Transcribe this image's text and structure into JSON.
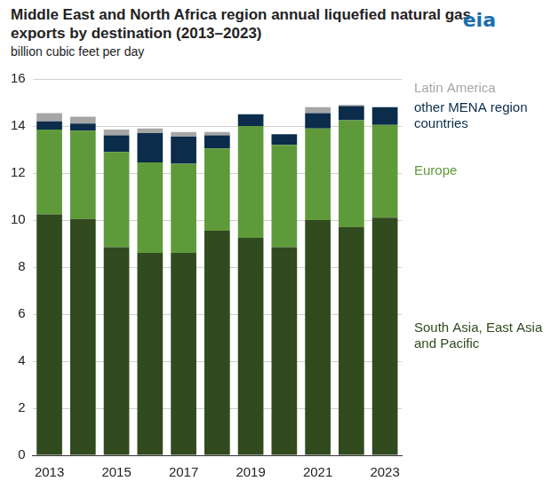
{
  "chart_data": {
    "type": "bar",
    "title": "Middle East and North Africa region annual liquefied natural gas exports by destination (2013–2023)",
    "subtitle": "billion cubic feet per day",
    "annotations": [
      "eia"
    ],
    "categories": [
      "2013",
      null,
      "2015",
      null,
      "2017",
      null,
      "2019",
      null,
      "2021",
      null,
      "2023"
    ],
    "series": [
      {
        "name": "South Asia, East Asia and Pacific",
        "color": "#314a1e",
        "values": [
          10.25,
          10.05,
          8.85,
          8.6,
          8.6,
          9.55,
          9.25,
          8.85,
          10.0,
          9.7,
          10.1
        ]
      },
      {
        "name": "Europe",
        "color": "#5f9a3a",
        "values": [
          3.6,
          3.75,
          4.05,
          3.85,
          3.8,
          3.5,
          4.75,
          4.35,
          3.9,
          4.55,
          3.95
        ]
      },
      {
        "name": "other MENA region countries",
        "color": "#0b2c4a",
        "values": [
          0.35,
          0.3,
          0.7,
          1.25,
          1.15,
          0.55,
          0.5,
          0.45,
          0.65,
          0.6,
          0.75
        ]
      },
      {
        "name": "Latin America",
        "color": "#a6a6a6",
        "values": [
          0.35,
          0.3,
          0.25,
          0.2,
          0.2,
          0.15,
          0,
          0,
          0.25,
          0.05,
          0
        ]
      }
    ],
    "ylim": [
      0,
      16
    ],
    "yticks": [
      0,
      2,
      4,
      6,
      8,
      10,
      12,
      14,
      16
    ],
    "grid": true,
    "stacked": true,
    "legend": "right"
  }
}
